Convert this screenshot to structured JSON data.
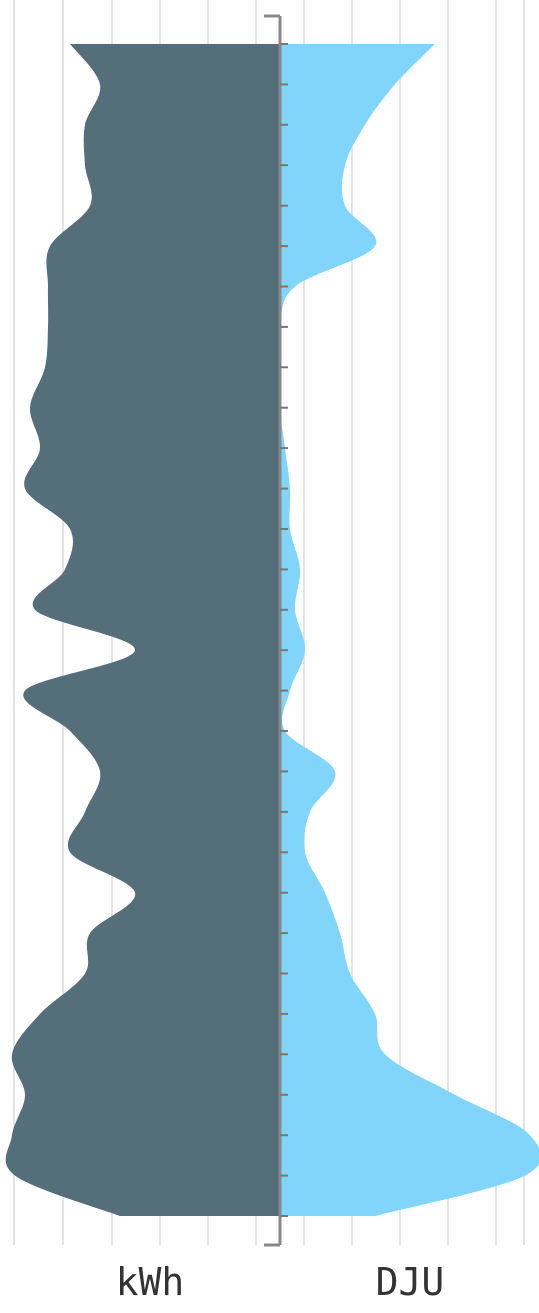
{
  "chart_data": {
    "type": "area",
    "orientation": "vertical-butterfly",
    "grid": true,
    "legend": "none",
    "series": [
      {
        "name": "kWh",
        "side": "left",
        "color": "#546e7a",
        "values": [
          210,
          180,
          195,
          195,
          190,
          230,
          232,
          232,
          235,
          250,
          240,
          255,
          210,
          215,
          245,
          145,
          255,
          210,
          180,
          195,
          210,
          145,
          190,
          195,
          240,
          268,
          255,
          268,
          265,
          160
        ]
      },
      {
        "name": "DJU",
        "side": "right",
        "color": "#81d4fa",
        "values": [
          155,
          115,
          85,
          65,
          65,
          95,
          15,
          0,
          0,
          0,
          5,
          10,
          10,
          20,
          15,
          25,
          10,
          5,
          55,
          30,
          25,
          45,
          60,
          70,
          95,
          105,
          175,
          250,
          245,
          95
        ]
      }
    ],
    "xlabels": [
      "kWh",
      "DJU"
    ]
  }
}
